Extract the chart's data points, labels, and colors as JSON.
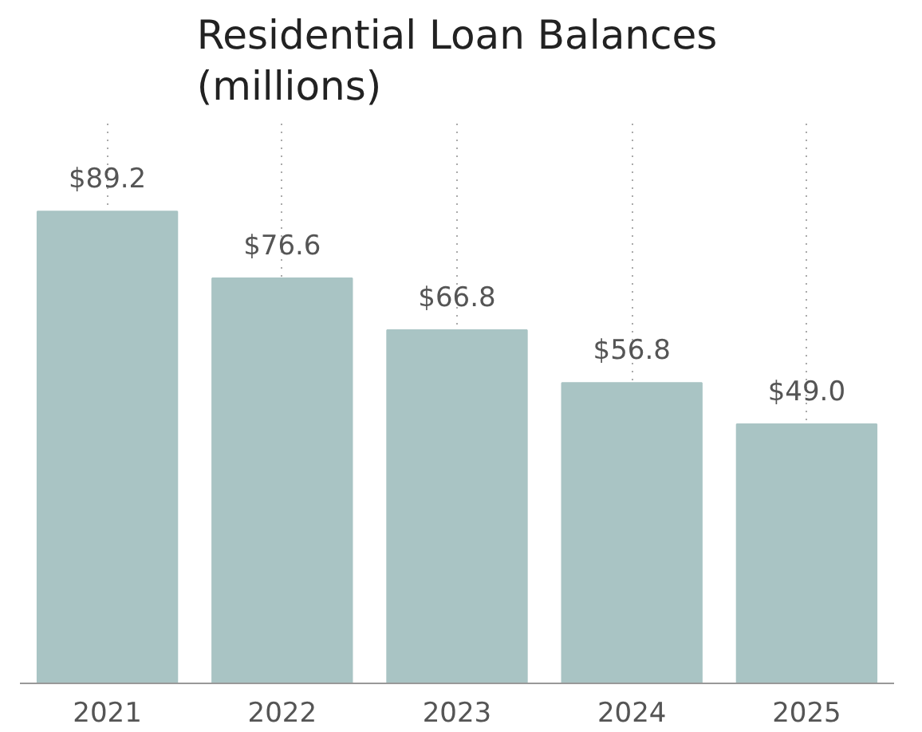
{
  "chart_data": {
    "type": "bar",
    "title": "Residential Loan Balances\n(millions)",
    "categories": [
      "2021",
      "2022",
      "2023",
      "2024",
      "2025"
    ],
    "values": [
      89.2,
      76.6,
      66.8,
      56.8,
      49.0
    ],
    "value_labels": [
      "$89.2",
      "$76.6",
      "$66.8",
      "$56.8",
      "$49.0"
    ],
    "color": "#a9c4c4",
    "grid": "x"
  }
}
